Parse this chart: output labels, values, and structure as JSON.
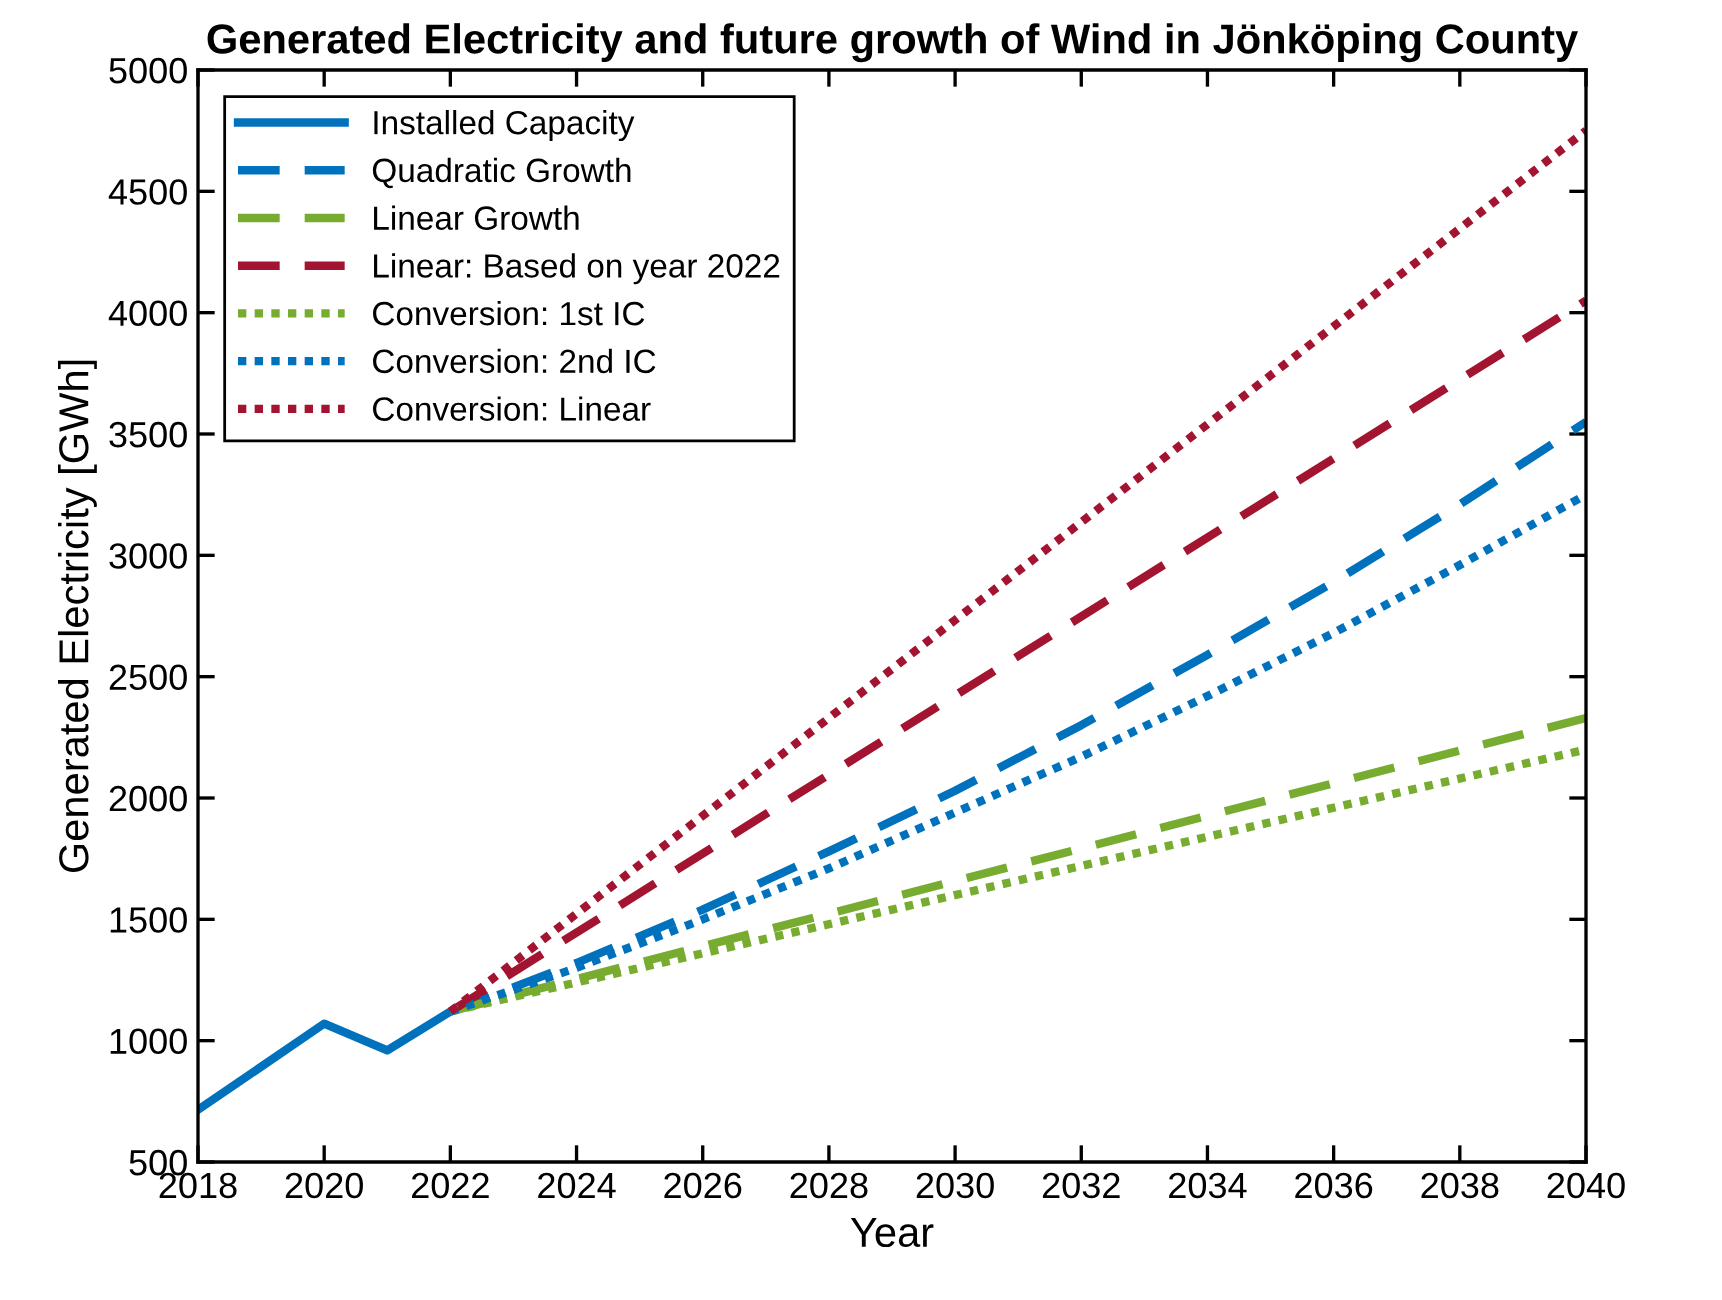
{
  "chart_data": {
    "type": "line",
    "title": "Generated Electricity and future growth of Wind in Jönköping County",
    "xlabel": "Year",
    "ylabel": "Generated Electricity [GWh]",
    "xlim": [
      2018,
      2040
    ],
    "xticks": [
      2018,
      2020,
      2022,
      2024,
      2026,
      2028,
      2030,
      2032,
      2034,
      2036,
      2038,
      2040
    ],
    "ylim": [
      500,
      5000
    ],
    "yticks": [
      500,
      1000,
      1500,
      2000,
      2500,
      3000,
      3500,
      4000,
      4500,
      5000
    ],
    "grid": false,
    "legend": "top left",
    "marker": "none",
    "series": [
      {
        "name": "Installed Capacity",
        "color": "#0072bd",
        "line_style": "solid",
        "x": [
          2018,
          2020,
          2021,
          2022
        ],
        "values": [
          715,
          1070,
          960,
          1120
        ]
      },
      {
        "name": "Quadratic Growth",
        "color": "#0072bd",
        "line_style": "dashed",
        "x": [
          2022,
          2024,
          2026,
          2028,
          2030,
          2032,
          2034,
          2036,
          2038,
          2040
        ],
        "values": [
          1120,
          1320,
          1540,
          1780,
          2030,
          2300,
          2590,
          2890,
          3210,
          3550
        ]
      },
      {
        "name": "Linear Growth",
        "color": "#77ac30",
        "line_style": "dashed",
        "x": [
          2022,
          2040
        ],
        "values": [
          1120,
          2330
        ]
      },
      {
        "name": "Linear: Based on year 2022",
        "color": "#a2142f",
        "line_style": "dashed",
        "x": [
          2022,
          2040
        ],
        "values": [
          1120,
          4050
        ]
      },
      {
        "name": "Conversion: 1st IC",
        "color": "#77ac30",
        "line_style": "dotted",
        "x": [
          2022,
          2040
        ],
        "values": [
          1120,
          2200
        ]
      },
      {
        "name": "Conversion: 2nd IC",
        "color": "#0072bd",
        "line_style": "dotted",
        "x": [
          2022,
          2024,
          2026,
          2028,
          2030,
          2032,
          2034,
          2036,
          2038,
          2040
        ],
        "values": [
          1120,
          1300,
          1500,
          1710,
          1940,
          2170,
          2420,
          2680,
          2960,
          3250
        ]
      },
      {
        "name": "Conversion: Linear",
        "color": "#a2142f",
        "line_style": "dotted",
        "x": [
          2022,
          2040
        ],
        "values": [
          1120,
          4750
        ]
      }
    ]
  }
}
